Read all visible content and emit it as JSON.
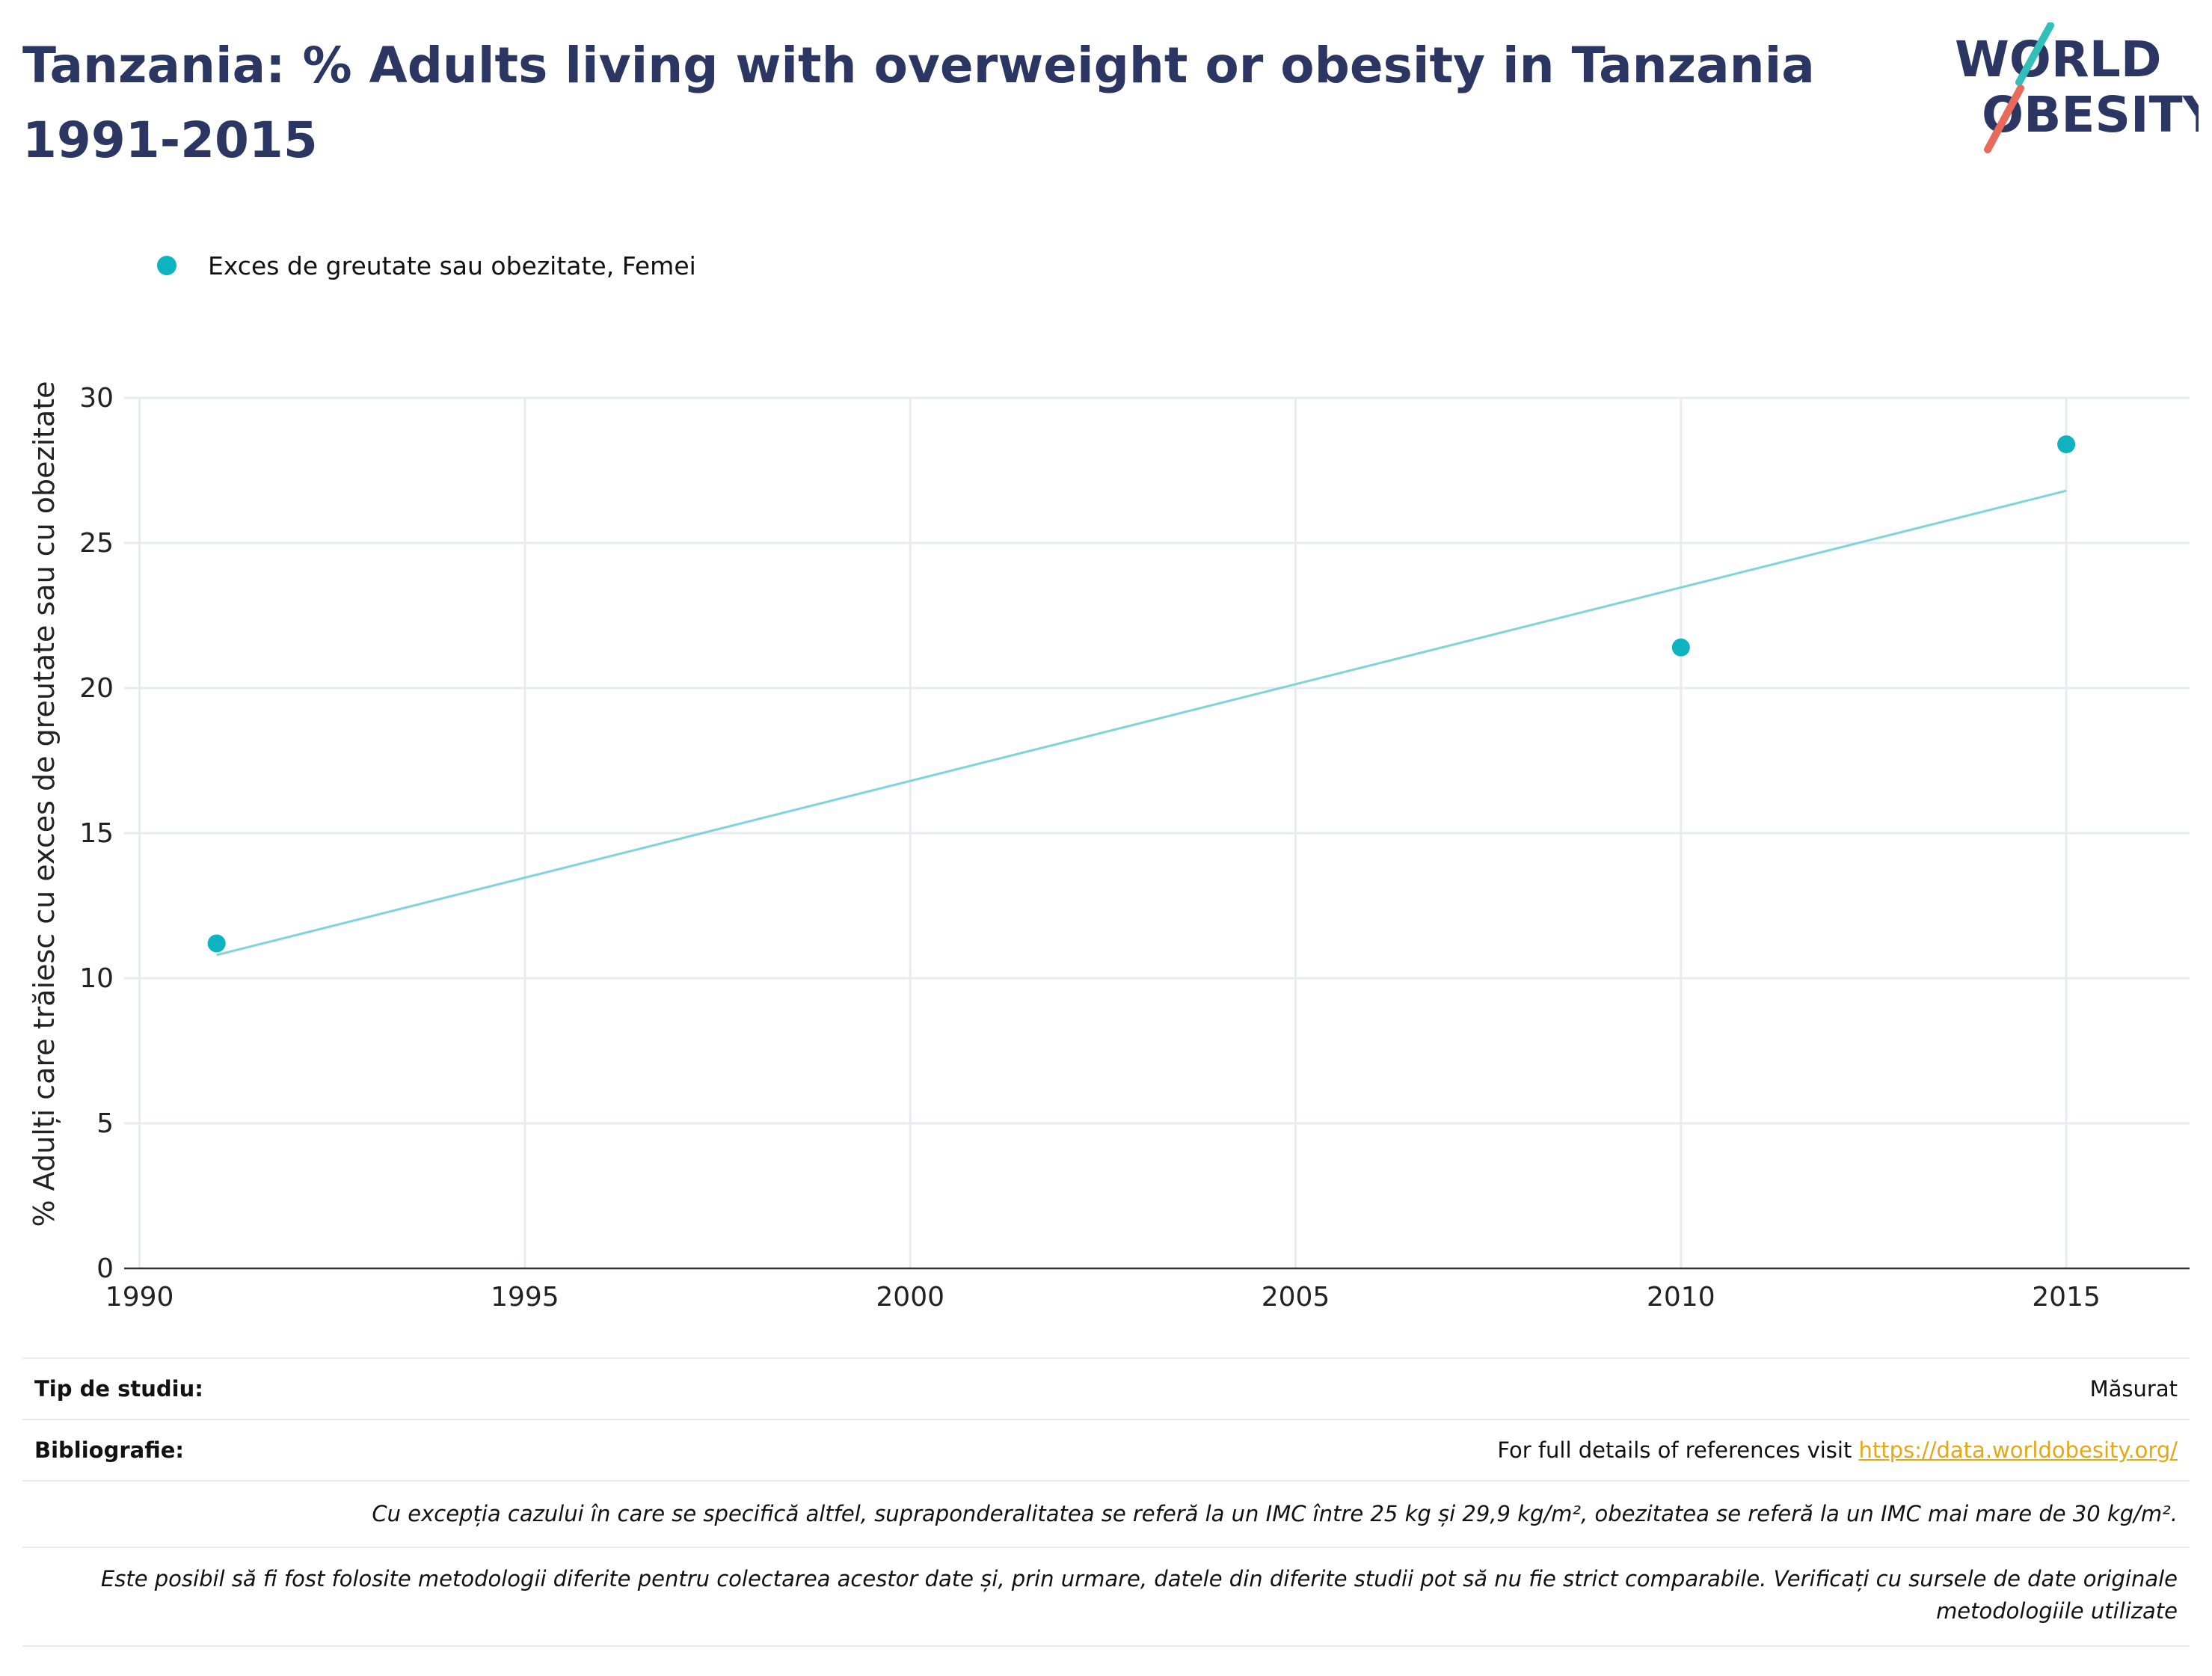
{
  "title": "Tanzania: % Adults living with overweight or obesity in Tanzania 1991-2015",
  "logo": {
    "line1": "WORLD",
    "line2": "OBESITY"
  },
  "colors": {
    "series": "#0fb2bf",
    "trend": "#7fd4dc",
    "title": "#2b3663",
    "logo_text": "#2b3663",
    "logo_teal": "#33bfb9",
    "logo_coral": "#e86a5b",
    "link": "#e4a813",
    "grid": "#e8ebf0"
  },
  "chart_data": {
    "type": "scatter",
    "legend_position": "top-left",
    "grid": true,
    "xlabel": "",
    "ylabel": "% Adulți care trăiesc cu exces de greutate sau cu obezitate",
    "xlim": [
      1989.8,
      2016.6
    ],
    "ylim": [
      0,
      30
    ],
    "xticks": [
      1990,
      1995,
      2000,
      2005,
      2010,
      2015
    ],
    "yticks": [
      0,
      5,
      10,
      15,
      20,
      25,
      30
    ],
    "series": [
      {
        "name": "Exces de greutate sau obezitate, Femei",
        "x": [
          1991,
          2010,
          2015
        ],
        "y": [
          11.2,
          21.4,
          28.4
        ]
      }
    ],
    "trendline": {
      "x": [
        1991,
        2015
      ],
      "y": [
        10.8,
        26.8
      ]
    }
  },
  "meta": {
    "study_type_label": "Tip de studiu:",
    "study_type_value": "Măsurat",
    "bibliography_label": "Bibliografie:",
    "bibliography_text": "For full details of references visit ",
    "bibliography_link": "https://data.worldobesity.org/",
    "note1": "Cu excepția cazului în care se specifică altfel, supraponderalitatea se referă la un IMC între 25 kg și 29,9 kg/m², obezitatea se referă la un IMC mai mare de 30 kg/m².",
    "note2": "Este posibil să fi fost folosite metodologii diferite pentru colectarea acestor date și, prin urmare, datele din diferite studii pot să nu fie strict comparabile. Verificați cu sursele de date originale metodologiile utilizate"
  }
}
